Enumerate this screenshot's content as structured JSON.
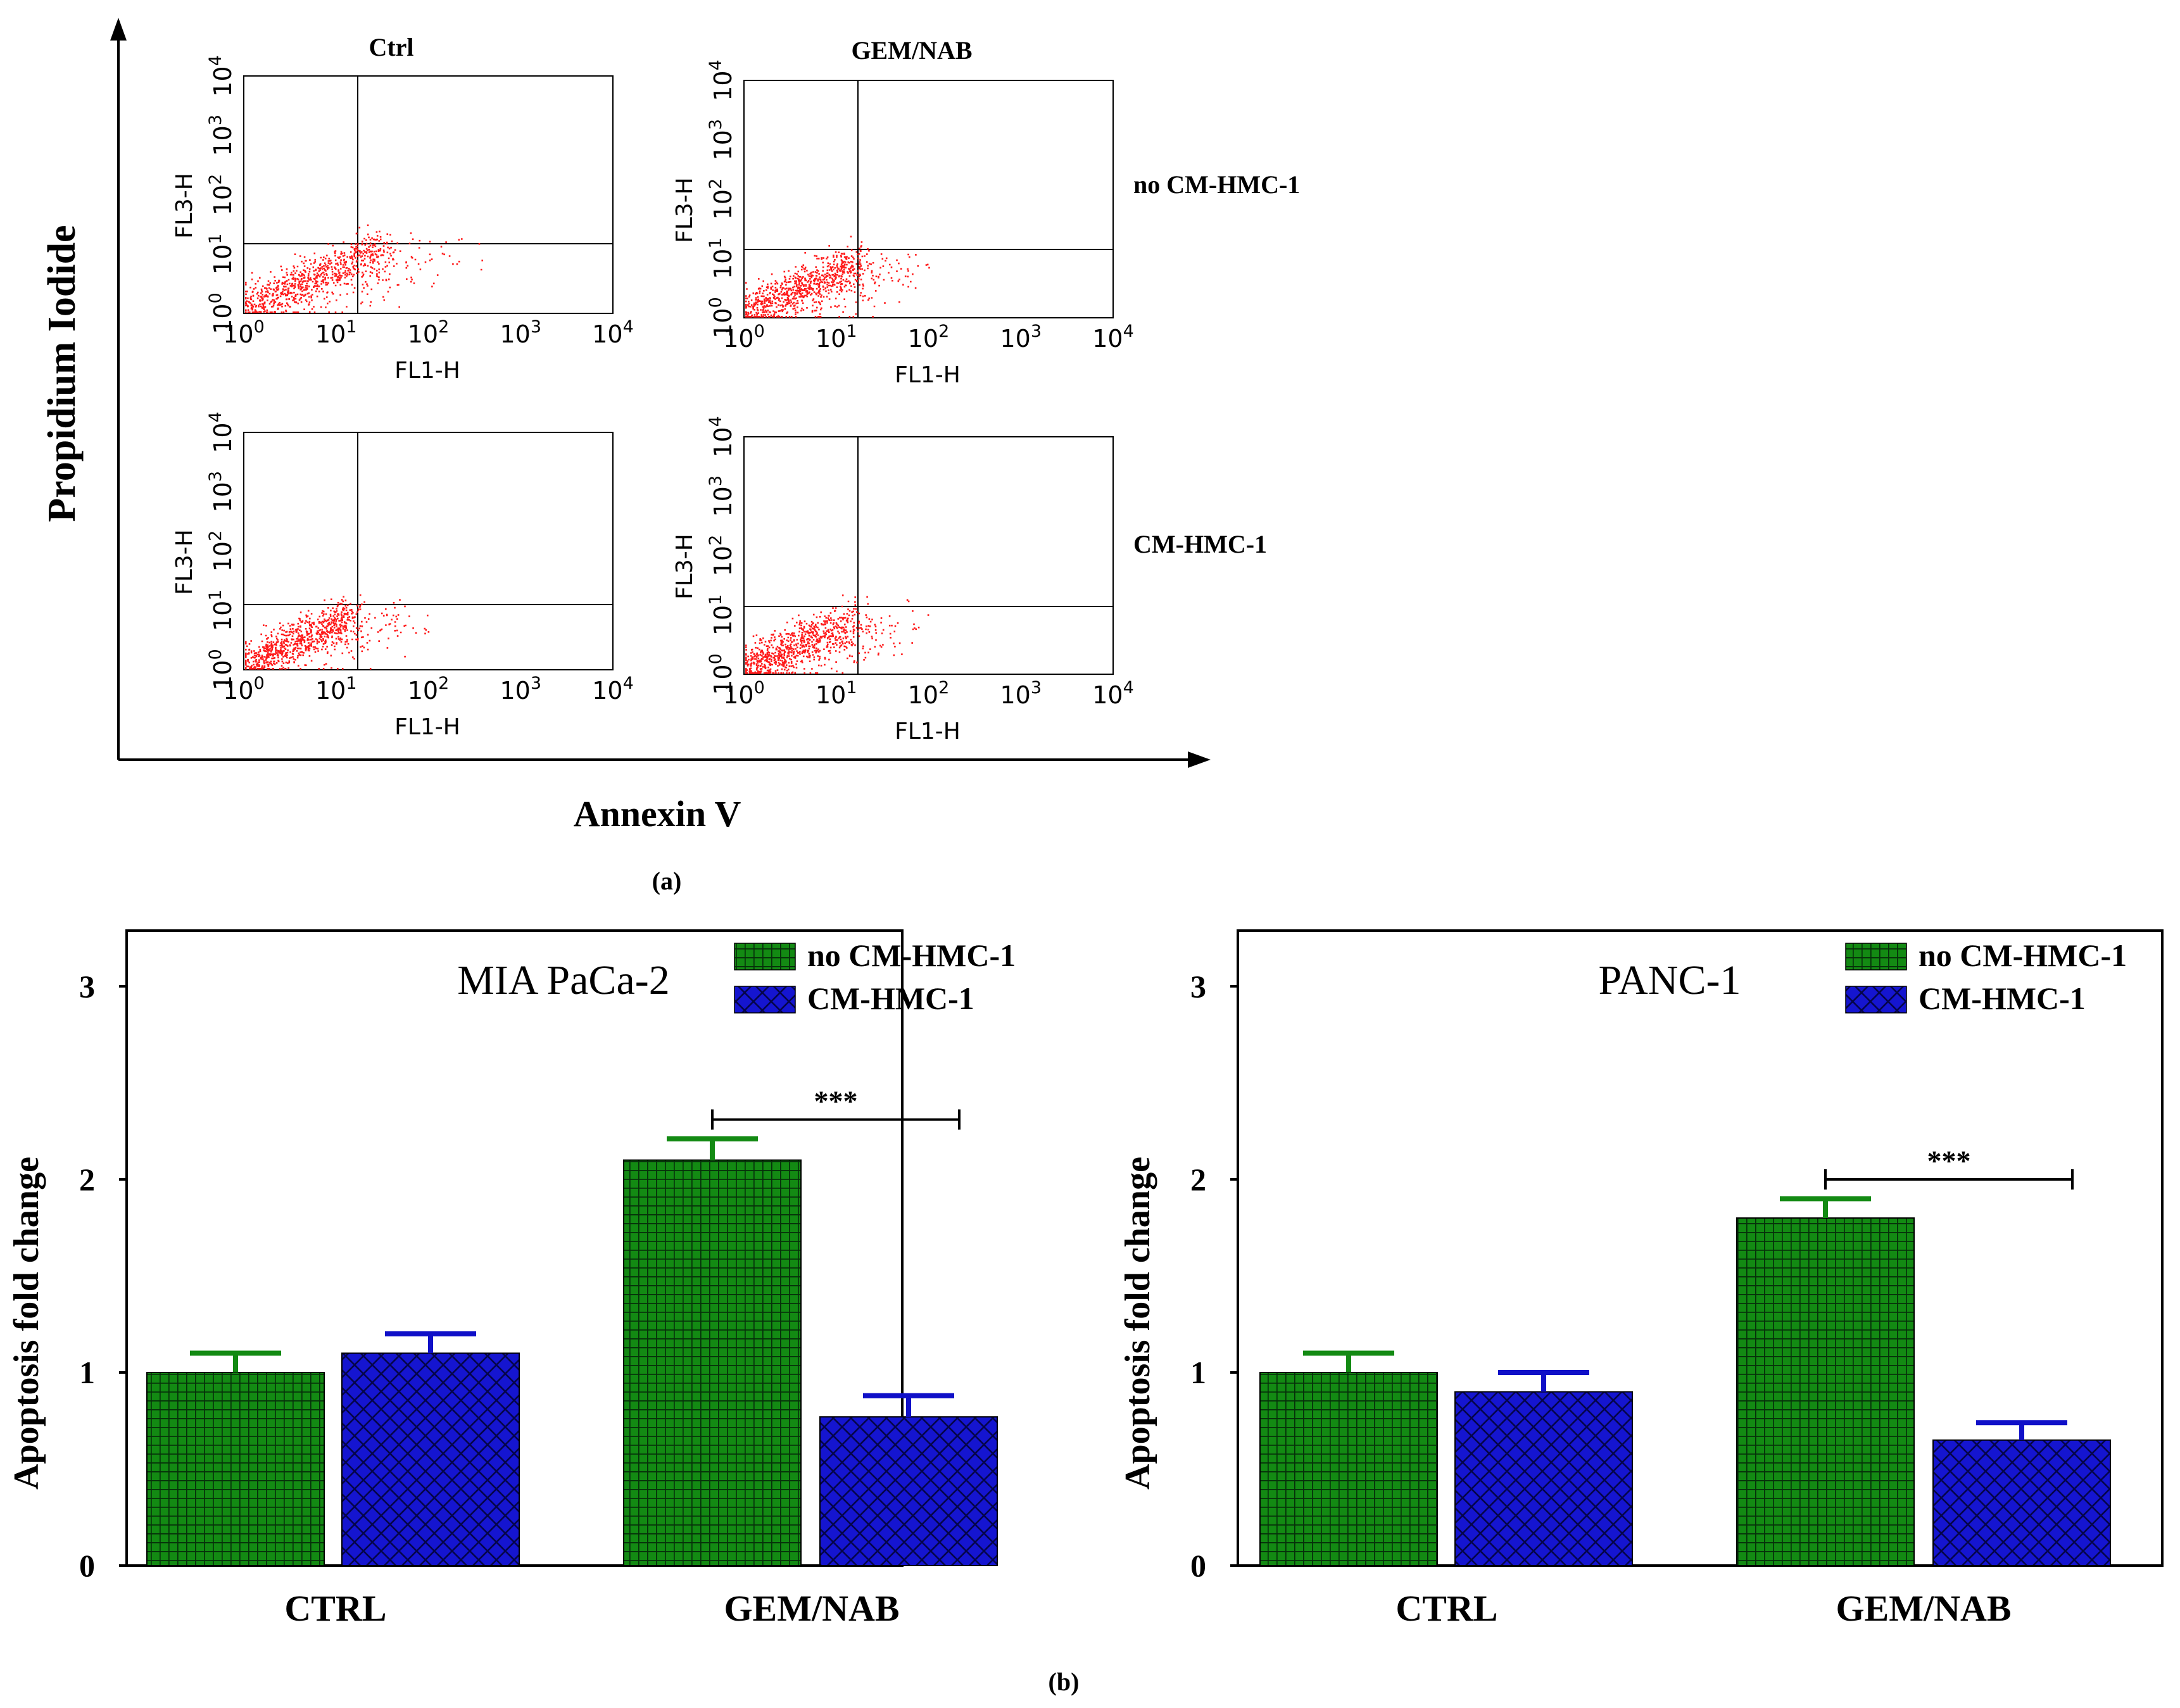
{
  "panel_a": {
    "label": "(a)",
    "y_title": "Propidium Iodide",
    "x_title": "Annexin V",
    "columns": [
      "Ctrl",
      "GEM/NAB"
    ],
    "rows": [
      "no CM-HMC-1",
      "CM-HMC-1"
    ],
    "plot_x_label": "FL1-H",
    "plot_y_label": "FL3-H",
    "tick_base": "10",
    "tick_exponents": [
      "0",
      "1",
      "2",
      "3",
      "4"
    ],
    "colors": {
      "dots": "#ff1a1a",
      "axis": "#000000"
    }
  },
  "panel_b_label": "(b)",
  "chart_data": [
    {
      "type": "bar",
      "title": "MIA PaCa-2",
      "ylabel": "Apoptosis fold change",
      "xlabel": "",
      "ylim": [
        0,
        3.3
      ],
      "yticks": [
        "0",
        "1",
        "2",
        "3"
      ],
      "categories": [
        "CTRL",
        "GEM/NAB"
      ],
      "series": [
        {
          "name": "no CM-HMC-1",
          "values": [
            1.0,
            2.1
          ],
          "errors": [
            0.1,
            0.11
          ],
          "color": "#138a13",
          "pattern": "grid"
        },
        {
          "name": "CM-HMC-1",
          "values": [
            1.1,
            0.77
          ],
          "errors": [
            0.1,
            0.11
          ],
          "color": "#1010c8",
          "pattern": "crosshatch"
        }
      ],
      "annotation": "***",
      "legend_position": "top-right"
    },
    {
      "type": "bar",
      "title": "PANC-1",
      "ylabel": "Apoptosis fold change",
      "xlabel": "",
      "ylim": [
        0,
        3.3
      ],
      "yticks": [
        "0",
        "1",
        "2",
        "3"
      ],
      "categories": [
        "CTRL",
        "GEM/NAB"
      ],
      "series": [
        {
          "name": "no CM-HMC-1",
          "values": [
            1.0,
            1.8
          ],
          "errors": [
            0.1,
            0.1
          ],
          "color": "#138a13",
          "pattern": "grid"
        },
        {
          "name": "CM-HMC-1",
          "values": [
            0.9,
            0.65
          ],
          "errors": [
            0.1,
            0.09
          ],
          "color": "#1010c8",
          "pattern": "crosshatch"
        }
      ],
      "annotation": "***",
      "legend_position": "top-right"
    }
  ]
}
